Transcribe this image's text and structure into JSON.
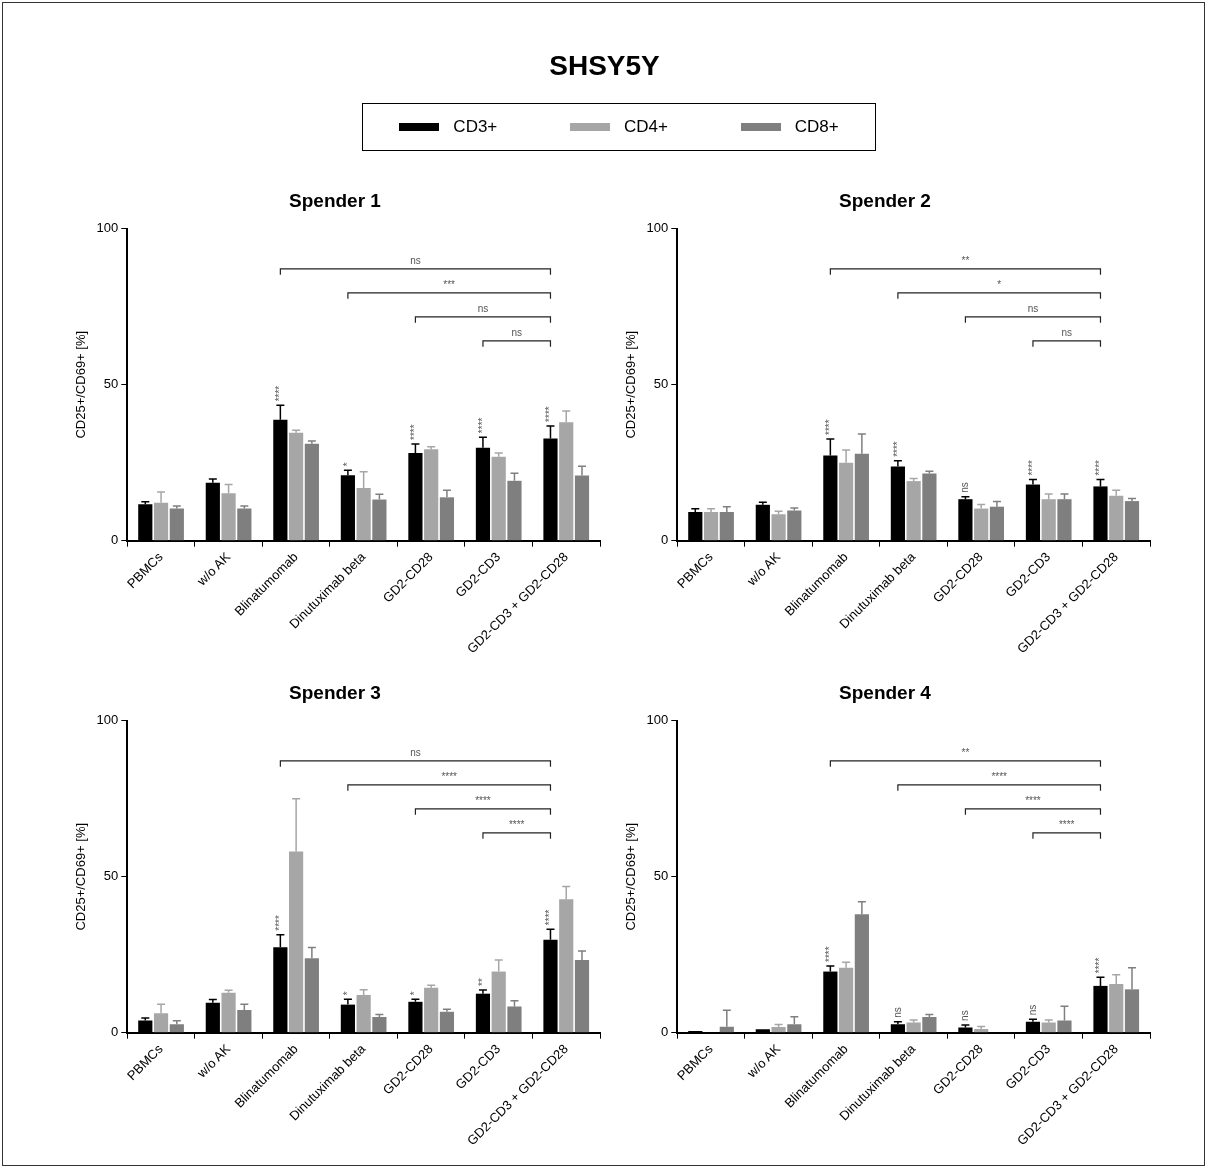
{
  "chart_data": [
    {
      "type": "bar",
      "title": "SHSY5Y",
      "subtitle": "Spender 1",
      "ylabel": "CD25+/CD69+ [%]",
      "legend": "top",
      "grid": false,
      "ylim": [
        0,
        100
      ],
      "yticks": [
        0,
        50,
        100
      ],
      "categories": [
        "PBMCs",
        "w/o AK",
        "Blinatumomab",
        "Dinutuximab beta",
        "GD2-CD28",
        "GD2-CD3",
        "GD2-CD3 + GD2-CD28"
      ],
      "series": [
        {
          "name": "CD3+",
          "color": "#000000",
          "values": [
            11.7,
            18.6,
            38.8,
            21.0,
            28.1,
            29.8,
            32.8
          ],
          "errors": [
            0.8,
            1.2,
            4.6,
            1.6,
            2.9,
            3.4,
            4.0
          ],
          "value_labels": [
            null,
            null,
            "****",
            "*",
            "****",
            "****",
            "****"
          ]
        },
        {
          "name": "CD4+",
          "color": "#a6a6a6",
          "values": [
            12.2,
            15.2,
            34.6,
            16.9,
            29.3,
            26.9,
            38.0
          ],
          "errors": [
            3.4,
            2.8,
            0.8,
            5.2,
            0.8,
            1.2,
            3.6
          ]
        },
        {
          "name": "CD8+",
          "color": "#7f7f7f",
          "values": [
            10.3,
            10.3,
            31.1,
            13.2,
            13.9,
            19.2,
            20.9
          ],
          "errors": [
            0.8,
            0.8,
            0.9,
            1.7,
            2.3,
            2.4,
            3.0
          ]
        }
      ],
      "annotations": [
        "ns",
        "***",
        "ns",
        "ns"
      ]
    },
    {
      "type": "bar",
      "title": "Spender 2",
      "ylabel": "CD25+/CD69+ [%]",
      "grid": false,
      "ylim": [
        0,
        100
      ],
      "yticks": [
        0,
        50,
        100
      ],
      "categories": [
        "PBMCs",
        "w/o AK",
        "Blinatumomab",
        "Dinutuximab beta",
        "GD2-CD28",
        "GD2-CD3",
        "GD2-CD3 + GD2-CD28"
      ],
      "series": [
        {
          "color": "#000000",
          "values": [
            9.2,
            11.5,
            27.3,
            23.8,
            13.3,
            18.0,
            17.4
          ],
          "errors": [
            1.0,
            0.8,
            5.3,
            1.8,
            0.8,
            1.6,
            2.2
          ],
          "value_labels": [
            null,
            null,
            "****",
            "****",
            "ns",
            "****",
            "****"
          ]
        },
        {
          "color": "#a6a6a6",
          "values": [
            9.2,
            8.5,
            25.0,
            19.1,
            10.3,
            13.3,
            14.4
          ],
          "errors": [
            1.0,
            0.9,
            4.1,
            0.8,
            1.3,
            1.7,
            1.8
          ]
        },
        {
          "color": "#7f7f7f",
          "values": [
            9.2,
            9.7,
            27.9,
            21.5,
            10.9,
            13.3,
            12.7
          ],
          "errors": [
            1.7,
            0.8,
            6.3,
            0.8,
            1.7,
            1.7,
            0.8
          ]
        }
      ],
      "annotations": [
        "**",
        "*",
        "ns",
        "ns"
      ]
    },
    {
      "type": "bar",
      "title": "Spender 3",
      "ylabel": "CD25+/CD69+ [%]",
      "grid": false,
      "ylim": [
        0,
        100
      ],
      "yticks": [
        0,
        50,
        100
      ],
      "categories": [
        "PBMCs",
        "w/o AK",
        "Blinatumomab",
        "Dinutuximab beta",
        "GD2-CD28",
        "GD2-CD3",
        "GD2-CD3 + GD2-CD28"
      ],
      "series": [
        {
          "color": "#000000",
          "values": [
            3.9,
            9.6,
            27.4,
            9.0,
            9.9,
            12.5,
            29.8
          ],
          "errors": [
            0.8,
            1.0,
            4.0,
            1.7,
            0.8,
            1.2,
            3.4
          ],
          "value_labels": [
            null,
            null,
            "****",
            "*",
            "*",
            "**",
            "****"
          ]
        },
        {
          "color": "#a6a6a6",
          "values": [
            6.2,
            12.8,
            58.1,
            12.1,
            14.4,
            19.6,
            42.8
          ],
          "errors": [
            2.9,
            0.8,
            16.9,
            1.7,
            0.8,
            3.7,
            4.1
          ]
        },
        {
          "color": "#7f7f7f",
          "values": [
            2.7,
            7.3,
            23.9,
            5.0,
            6.7,
            8.4,
            23.3
          ],
          "errors": [
            1.1,
            1.8,
            3.4,
            0.8,
            0.8,
            1.8,
            2.9
          ]
        }
      ],
      "annotations": [
        "ns",
        "****",
        "****",
        "****"
      ]
    },
    {
      "type": "bar",
      "title": "Spender 4",
      "ylabel": "CD25+/CD69+ [%]",
      "grid": false,
      "ylim": [
        0,
        100
      ],
      "yticks": [
        0,
        50,
        100
      ],
      "categories": [
        "PBMCs",
        "w/o AK",
        "Blinatumomab",
        "Dinutuximab beta",
        "GD2-CD28",
        "GD2-CD3",
        "GD2-CD3 + GD2-CD28"
      ],
      "series": [
        {
          "color": "#000000",
          "values": [
            0.5,
            1.1,
            19.6,
            2.7,
            1.7,
            3.5,
            15.0
          ],
          "errors": [
            null,
            null,
            1.8,
            0.8,
            0.8,
            0.8,
            2.8
          ],
          "value_labels": [
            null,
            null,
            "****",
            "ns",
            "ns",
            "ns",
            "****"
          ]
        },
        {
          "color": "#a6a6a6",
          "values": [
            null,
            1.8,
            20.8,
            3.3,
            1.2,
            3.3,
            15.6
          ],
          "errors": [
            null,
            0.8,
            1.8,
            0.8,
            0.8,
            0.8,
            3.0
          ]
        },
        {
          "color": "#7f7f7f",
          "values": [
            1.9,
            2.7,
            38.0,
            5.0,
            0,
            3.9,
            13.9
          ],
          "errors": [
            5.3,
            2.4,
            4.0,
            0.8,
            null,
            4.6,
            6.9
          ]
        }
      ],
      "annotations": [
        "**",
        "****",
        "****",
        "****"
      ]
    }
  ]
}
